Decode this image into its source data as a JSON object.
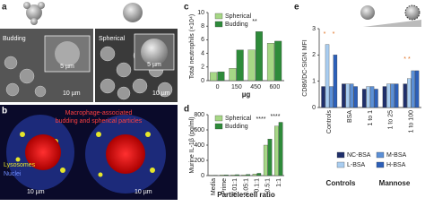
{
  "panels": {
    "a": {
      "label": "a",
      "left_title": "Budding",
      "right_title": "Spherical",
      "scale_inset_left": "5 µm",
      "scale_inset_right": "5 µm",
      "scale_left": "10 µm",
      "scale_right": "10 µm"
    },
    "b": {
      "label": "b",
      "caption_line1": "Macrophage-associated",
      "caption_line2": "budding and spherical particles",
      "lysosomes": "Lysosomes",
      "nuclei": "Nuclei",
      "scale_left": "10 µm",
      "scale_right": "10 µm"
    }
  },
  "chart_data": [
    {
      "type": "bar",
      "label": "c",
      "y_label": "Total neutrophils (×10⁴)",
      "x_label": "µg",
      "categories": [
        "0",
        "150",
        "450",
        "600"
      ],
      "series": [
        {
          "name": "Spherical",
          "color": "#a6d785",
          "values": [
            1.2,
            1.8,
            4.5,
            5.5
          ]
        },
        {
          "name": "Budding",
          "color": "#2e8b3a",
          "values": [
            1.3,
            4.5,
            7.2,
            5.8
          ]
        }
      ],
      "ylim": [
        0,
        10
      ],
      "yticks": [
        0,
        2,
        4,
        6,
        8,
        10
      ],
      "annotations": [
        "**"
      ]
    },
    {
      "type": "bar",
      "label": "d",
      "y_label": "Murine IL-1β (pg/ml)",
      "x_label": "Particle:cell ratio",
      "categories": [
        "Media",
        "Prime",
        "0.01:1",
        "0.05:1",
        "0.1:1",
        "0.5:1",
        "1:1"
      ],
      "series": [
        {
          "name": "Spherical",
          "color": "#a6d785",
          "values": [
            5,
            10,
            10,
            10,
            20,
            400,
            650
          ]
        },
        {
          "name": "Budding",
          "color": "#2e8b3a",
          "values": [
            5,
            10,
            12,
            15,
            30,
            480,
            700
          ]
        }
      ],
      "ylim": [
        0,
        800
      ],
      "yticks": [
        0,
        200,
        400,
        600,
        800
      ],
      "annotations": [
        "****",
        "****"
      ]
    },
    {
      "type": "bar",
      "label": "e",
      "y_label": "CD86/DC-SIGN MFI",
      "categories": [
        "Controls",
        "BSA",
        "1 to 1",
        "1 to 25",
        "1 to 100"
      ],
      "series": [
        {
          "name": "NC-BSA",
          "color": "#1f2f6b",
          "values": [
            0.8,
            0.9,
            0.7,
            0.8,
            0.9
          ]
        },
        {
          "name": "L-BSA",
          "color": "#a9cdf0",
          "values": [
            2.4,
            0.9,
            0.8,
            0.9,
            1.1
          ]
        },
        {
          "name": "M-BSA",
          "color": "#5b8fd6",
          "values": [
            0.8,
            0.9,
            0.8,
            0.9,
            1.4
          ]
        },
        {
          "name": "H-BSA",
          "color": "#2c5fb8",
          "values": [
            2.0,
            0.8,
            0.7,
            0.9,
            1.4
          ]
        }
      ],
      "ylim": [
        0,
        3
      ],
      "yticks": [
        0,
        1,
        2,
        3
      ],
      "groups": [
        "Controls",
        "Mannose"
      ],
      "annotations": [
        "*",
        "*",
        "* *"
      ]
    }
  ]
}
